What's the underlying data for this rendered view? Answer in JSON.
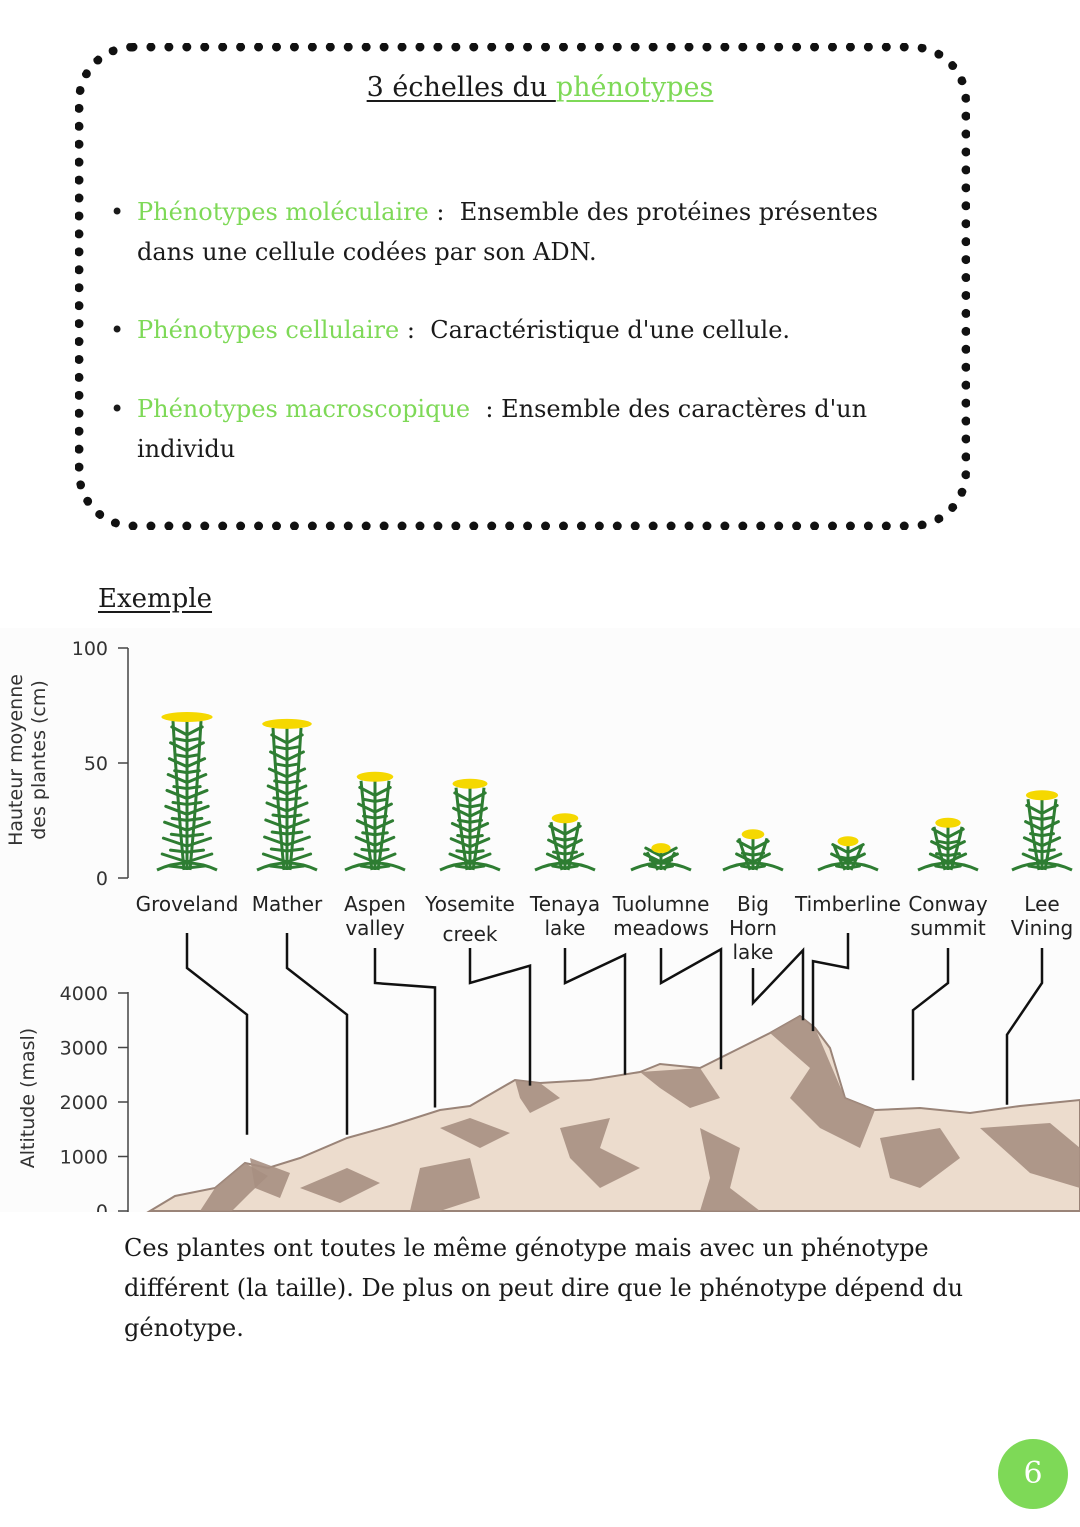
{
  "box": {
    "title_prefix": "3 échelles du ",
    "title_highlight": "phénotypes",
    "items": [
      {
        "term": "Phénotypes moléculaire",
        "sep": " :  ",
        "definition": "Ensemble des protéines présentes dans une cellule codées par son ADN."
      },
      {
        "term": "Phénotypes cellulaire",
        "sep": " :  ",
        "definition": "Caractéristique d'une cellule."
      },
      {
        "term": "Phénotypes macroscopique",
        "sep": "  : ",
        "definition": "Ensemble des caractères d'un individu"
      }
    ]
  },
  "example_heading": "Exemple",
  "chart_data": {
    "type": "bar",
    "top_panel": {
      "ylabel_line1": "Hauteur moyenne",
      "ylabel_line2": "des plantes (cm)",
      "yticks": [
        "100",
        "50",
        "0"
      ],
      "ylim": [
        0,
        100
      ]
    },
    "bottom_panel": {
      "ylabel": "Altitude (masl)",
      "yticks": [
        "4000",
        "3000",
        "2000",
        "1000",
        "0"
      ],
      "ylim": [
        0,
        4000
      ]
    },
    "sites": [
      {
        "name": "Groveland",
        "label_lines": [
          "Groveland"
        ],
        "plant_height_cm": 70,
        "altitude_m": 1400
      },
      {
        "name": "Mather",
        "label_lines": [
          "Mather"
        ],
        "plant_height_cm": 67,
        "altitude_m": 1400
      },
      {
        "name": "Aspen valley",
        "label_lines": [
          "Aspen",
          "valley"
        ],
        "plant_height_cm": 44,
        "altitude_m": 1900
      },
      {
        "name": "Yosemite creek",
        "label_lines": [
          "Yosemite",
          "creek"
        ],
        "plant_height_cm": 41,
        "altitude_m": 2300
      },
      {
        "name": "Tenaya lake",
        "label_lines": [
          "Tenaya",
          "lake"
        ],
        "plant_height_cm": 26,
        "altitude_m": 2500
      },
      {
        "name": "Tuolumne meadows",
        "label_lines": [
          "Tuolumne",
          "meadows"
        ],
        "plant_height_cm": 13,
        "altitude_m": 2600
      },
      {
        "name": "Big Horn lake",
        "label_lines": [
          "Big",
          "Horn",
          "lake"
        ],
        "plant_height_cm": 19,
        "altitude_m": 3500
      },
      {
        "name": "Timberline",
        "label_lines": [
          "Timberline"
        ],
        "plant_height_cm": 16,
        "altitude_m": 3300
      },
      {
        "name": "Conway summit",
        "label_lines": [
          "Conway",
          "summit"
        ],
        "plant_height_cm": 24,
        "altitude_m": 2400
      },
      {
        "name": "Lee Vining",
        "label_lines": [
          "Lee",
          "Vining"
        ],
        "plant_height_cm": 36,
        "altitude_m": 1950
      }
    ]
  },
  "caption": "Ces plantes ont toutes le même génotype mais avec un phénotype différent (la taille). De plus on peut dire que le phénotype dépend du génotype.",
  "page_number": "6",
  "colors": {
    "accent_green": "#7ed957",
    "plant_green": "#2e7d32",
    "flower_yellow": "#f5d800",
    "mountain_light": "#ecdccd",
    "mountain_dark": "#a78f82"
  }
}
